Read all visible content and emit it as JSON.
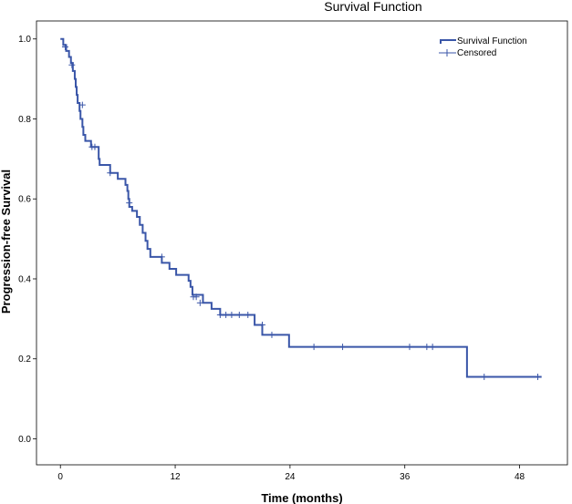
{
  "chart_data": {
    "type": "line",
    "title": "Survival Function",
    "xlabel": "Time (months)",
    "ylabel": "Progression-free Survival",
    "xlim": [
      -2.5,
      53
    ],
    "ylim": [
      -0.065,
      1.045
    ],
    "x_ticks": [
      0,
      12,
      24,
      36,
      48
    ],
    "y_ticks": [
      0.0,
      0.2,
      0.4,
      0.6,
      0.8,
      1.0
    ],
    "y_tick_labels": [
      "0.0",
      "0.2",
      "0.4",
      "0.6",
      "0.8",
      "1.0"
    ],
    "grid": false,
    "legend": "top-right",
    "color": "#3a56a8",
    "series": [
      {
        "name": "Survival Function",
        "steps": [
          [
            0,
            1.0
          ],
          [
            0.3,
            0.985
          ],
          [
            0.6,
            0.97
          ],
          [
            0.9,
            0.955
          ],
          [
            1.1,
            0.94
          ],
          [
            1.3,
            0.92
          ],
          [
            1.5,
            0.9
          ],
          [
            1.6,
            0.88
          ],
          [
            1.7,
            0.86
          ],
          [
            1.8,
            0.84
          ],
          [
            2.0,
            0.82
          ],
          [
            2.1,
            0.8
          ],
          [
            2.3,
            0.78
          ],
          [
            2.4,
            0.76
          ],
          [
            2.6,
            0.745
          ],
          [
            3.2,
            0.73
          ],
          [
            4.0,
            0.7
          ],
          [
            4.1,
            0.685
          ],
          [
            5.2,
            0.665
          ],
          [
            6.0,
            0.65
          ],
          [
            6.8,
            0.635
          ],
          [
            7.0,
            0.62
          ],
          [
            7.1,
            0.6
          ],
          [
            7.2,
            0.58
          ],
          [
            7.5,
            0.57
          ],
          [
            8.0,
            0.555
          ],
          [
            8.3,
            0.535
          ],
          [
            8.6,
            0.515
          ],
          [
            8.9,
            0.495
          ],
          [
            9.1,
            0.475
          ],
          [
            9.4,
            0.455
          ],
          [
            10.6,
            0.44
          ],
          [
            11.4,
            0.425
          ],
          [
            12.1,
            0.41
          ],
          [
            13.4,
            0.395
          ],
          [
            13.6,
            0.38
          ],
          [
            13.8,
            0.36
          ],
          [
            14.9,
            0.34
          ],
          [
            15.8,
            0.325
          ],
          [
            16.7,
            0.31
          ],
          [
            20.3,
            0.285
          ],
          [
            21.1,
            0.26
          ],
          [
            23.9,
            0.23
          ],
          [
            42.5,
            0.155
          ],
          [
            50.3,
            0.155
          ]
        ]
      },
      {
        "name": "Censored",
        "points": [
          [
            0.5,
            0.98
          ],
          [
            1.2,
            0.935
          ],
          [
            2.3,
            0.835
          ],
          [
            3.3,
            0.73
          ],
          [
            3.6,
            0.73
          ],
          [
            5.2,
            0.665
          ],
          [
            7.2,
            0.59
          ],
          [
            10.6,
            0.455
          ],
          [
            13.9,
            0.355
          ],
          [
            14.2,
            0.355
          ],
          [
            14.6,
            0.34
          ],
          [
            16.7,
            0.31
          ],
          [
            17.3,
            0.31
          ],
          [
            17.9,
            0.31
          ],
          [
            18.7,
            0.31
          ],
          [
            19.6,
            0.31
          ],
          [
            21.1,
            0.285
          ],
          [
            22.1,
            0.26
          ],
          [
            26.5,
            0.23
          ],
          [
            29.5,
            0.23
          ],
          [
            36.5,
            0.23
          ],
          [
            38.3,
            0.23
          ],
          [
            38.9,
            0.23
          ],
          [
            44.3,
            0.155
          ],
          [
            49.9,
            0.155
          ]
        ]
      }
    ]
  }
}
